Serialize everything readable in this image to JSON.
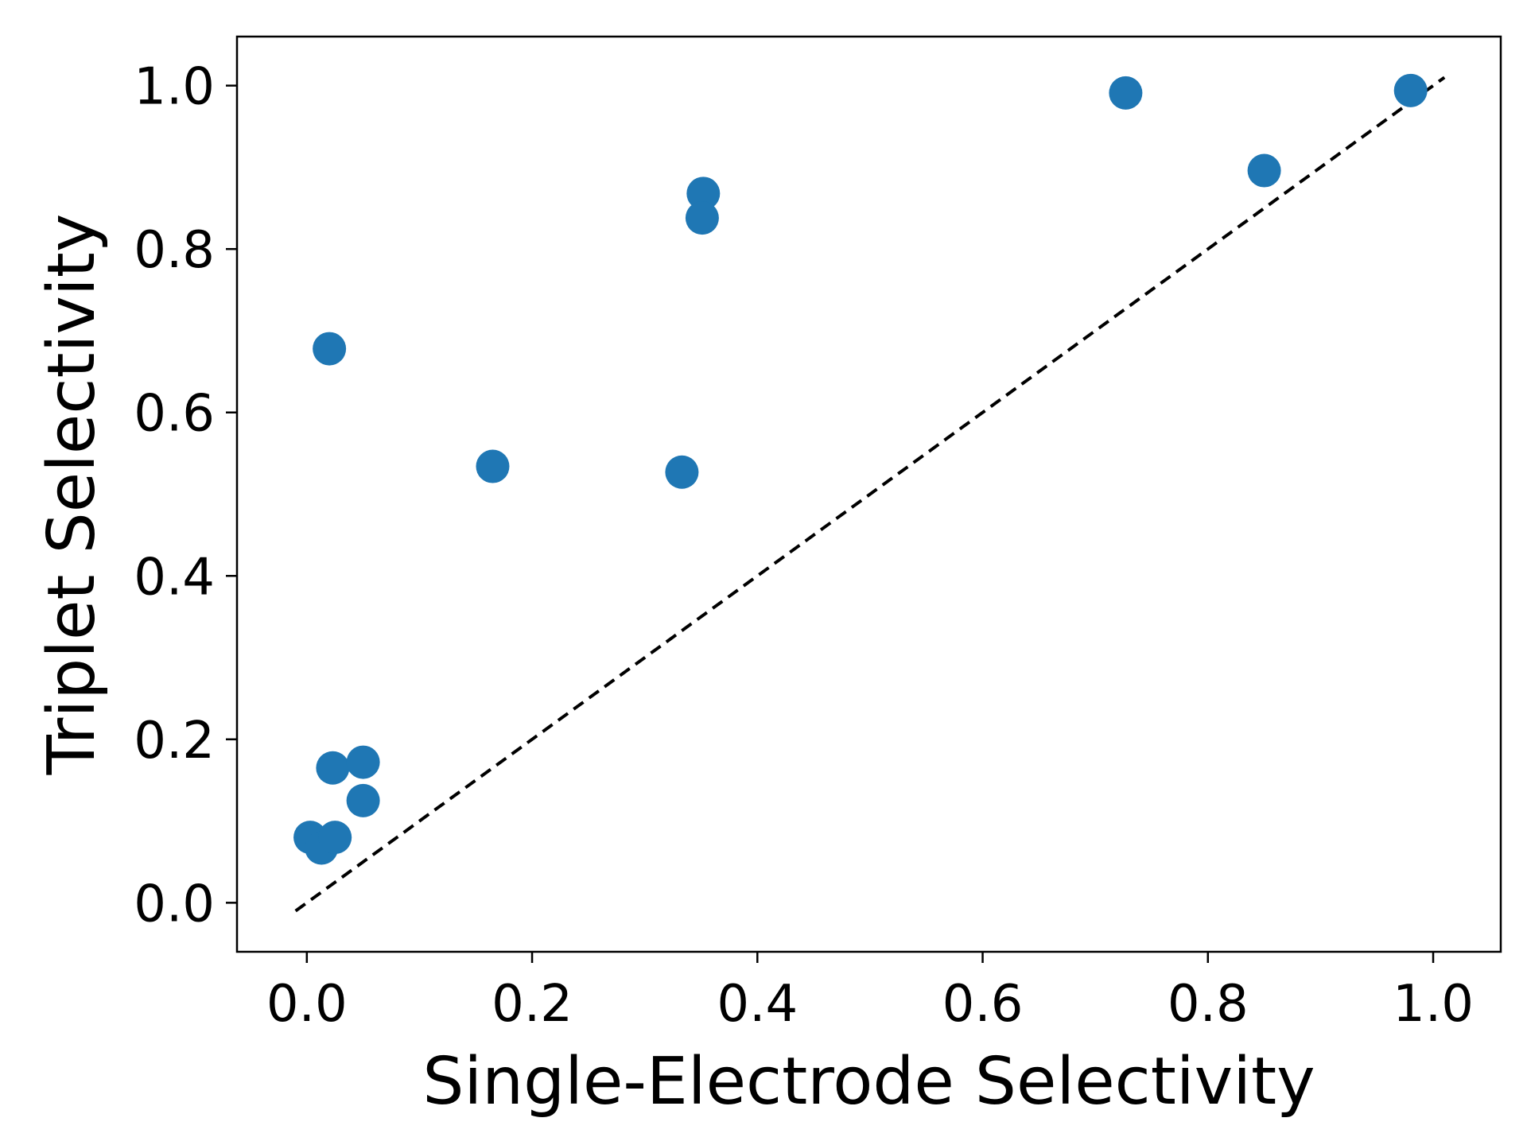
{
  "chart_data": {
    "type": "scatter",
    "title": "",
    "xlabel": "Single-Electrode Selectivity",
    "ylabel": "Triplet Selectivity",
    "xlim": [
      -0.062,
      1.06
    ],
    "ylim": [
      -0.06,
      1.06
    ],
    "xticks": [
      0.0,
      0.2,
      0.4,
      0.6,
      0.8,
      1.0
    ],
    "xtick_labels": [
      "0.0",
      "0.2",
      "0.4",
      "0.6",
      "0.8",
      "1.0"
    ],
    "yticks": [
      0.0,
      0.2,
      0.4,
      0.6,
      0.8,
      1.0
    ],
    "ytick_labels": [
      "0.0",
      "0.2",
      "0.4",
      "0.6",
      "0.8",
      "1.0"
    ],
    "grid": false,
    "marker_color": "#1f77b4",
    "reference_line": {
      "style": "dashed",
      "color": "#000000",
      "x": [
        -0.01,
        1.01
      ],
      "y": [
        -0.01,
        1.01
      ]
    },
    "points": [
      {
        "x": 0.02,
        "y": 0.678
      },
      {
        "x": 0.165,
        "y": 0.534
      },
      {
        "x": 0.333,
        "y": 0.527
      },
      {
        "x": 0.352,
        "y": 0.868
      },
      {
        "x": 0.351,
        "y": 0.838
      },
      {
        "x": 0.727,
        "y": 0.991
      },
      {
        "x": 0.85,
        "y": 0.896
      },
      {
        "x": 0.98,
        "y": 0.994
      },
      {
        "x": 0.023,
        "y": 0.165
      },
      {
        "x": 0.05,
        "y": 0.172
      },
      {
        "x": 0.05,
        "y": 0.125
      },
      {
        "x": 0.003,
        "y": 0.08
      },
      {
        "x": 0.013,
        "y": 0.067
      },
      {
        "x": 0.025,
        "y": 0.08
      }
    ]
  }
}
